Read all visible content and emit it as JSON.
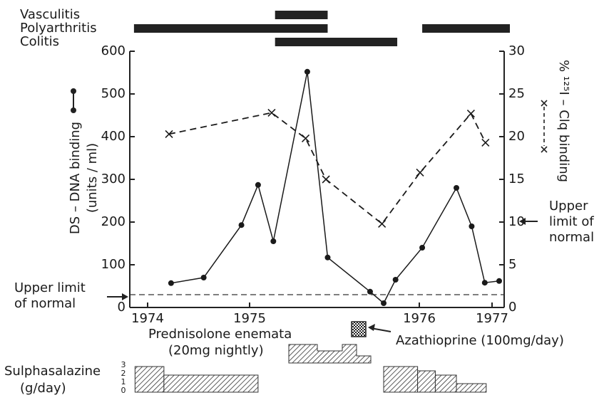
{
  "chart_data": {
    "type": "line",
    "xlim": [
      1973.83,
      1977.17
    ],
    "xticks": [
      1974,
      1975,
      1976,
      1977
    ],
    "ylim": [
      0,
      600
    ],
    "yticks": [
      0,
      100,
      200,
      300,
      400,
      500,
      600
    ],
    "y2lim": [
      0,
      30
    ],
    "y2ticks": [
      0,
      5,
      10,
      15,
      20,
      25,
      30
    ],
    "ylabel": [
      "DS – DNA binding",
      "(units / ml)"
    ],
    "y2label": "% ¹²⁵I – Clq binding",
    "series": [
      {
        "color": "#1a1a1a",
        "style": "solid",
        "marker": "dot",
        "x": [
          1974.23,
          1974.55,
          1974.92,
          1975.05,
          1975.14,
          1975.34,
          1975.46,
          1975.71,
          1975.79,
          1975.86,
          1976.04,
          1976.51,
          1976.72,
          1976.9,
          1977.1
        ],
        "values": [
          57,
          70,
          193,
          287,
          155,
          552,
          117,
          37,
          10,
          65,
          140,
          280,
          190,
          58,
          62
        ]
      },
      {
        "color": "#1a1a1a",
        "style": "dashed",
        "marker": "cross",
        "axis": "y2",
        "x": [
          1974.21,
          1975.13,
          1975.33,
          1975.45,
          1975.78,
          1976.01,
          1976.71,
          1976.91
        ],
        "values": [
          20.3,
          22.8,
          19.8,
          15,
          9.8,
          15.8,
          22.7,
          19.3
        ]
      }
    ],
    "reference_lines": [
      {
        "axis": "y",
        "value": 30,
        "label": [
          "Upper limit",
          "of normal"
        ]
      },
      {
        "axis": "y2",
        "value": 10,
        "label": [
          "Upper",
          "limit of",
          "normal"
        ]
      }
    ],
    "periods": [
      {
        "label": "Vasculitis",
        "ranges": [
          [
            1975.15,
            1975.46
          ]
        ]
      },
      {
        "label": "Polyarthritis",
        "ranges": [
          [
            1973.87,
            1975.46
          ],
          [
            1976.04,
            1977.25
          ]
        ]
      },
      {
        "label": "Colitis",
        "ranges": [
          [
            1975.15,
            1975.87
          ]
        ]
      }
    ],
    "prednisolone_label": [
      "Prednisolone enemata",
      "(20mg nightly)"
    ],
    "azathioprine_label": "Azathioprine (100mg/day)",
    "sulphasalazine": {
      "label": [
        "Sulphasalazine",
        "(g/day)"
      ],
      "yticks": [
        0,
        1,
        2,
        3
      ],
      "steps": [
        [
          1973.88,
          1974.16,
          3
        ],
        [
          1974.16,
          1975.05,
          2
        ],
        [
          1975.79,
          1975.99,
          3
        ],
        [
          1975.99,
          1976.22,
          2.5
        ],
        [
          1976.22,
          1976.51,
          2
        ],
        [
          1976.51,
          1976.92,
          1
        ]
      ]
    }
  }
}
